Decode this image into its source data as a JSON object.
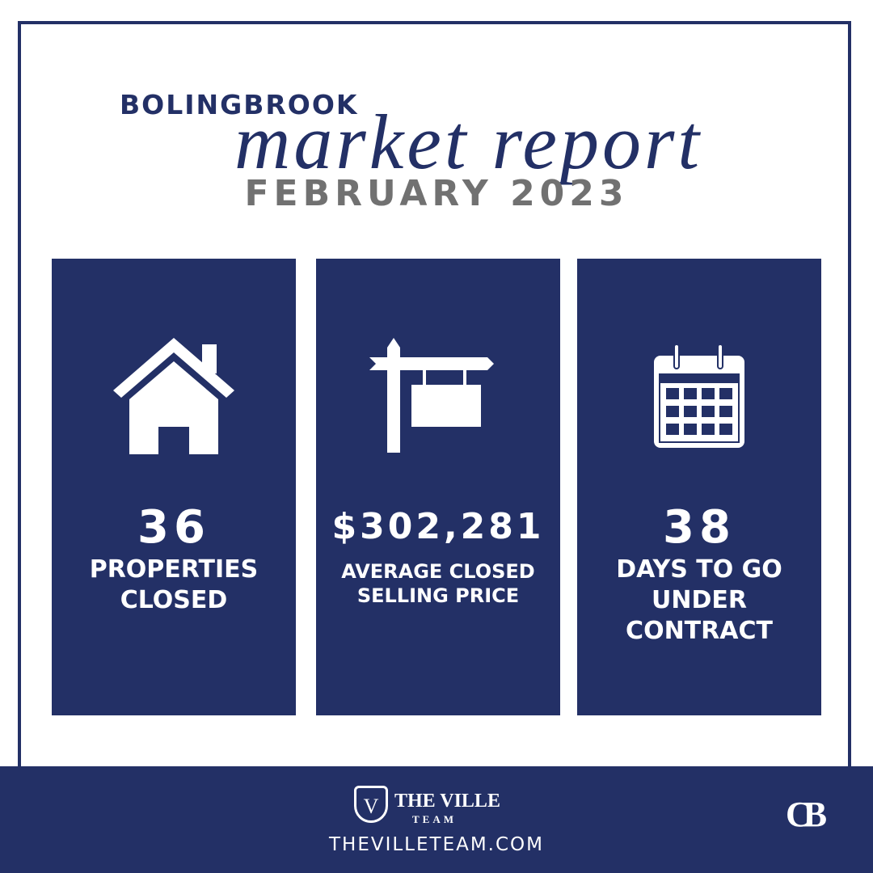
{
  "header": {
    "city": "BOLINGBROOK",
    "script": "market report",
    "period": "FEBRUARY 2023"
  },
  "stats": [
    {
      "value": "36",
      "label": [
        "PROPERTIES",
        "CLOSED"
      ]
    },
    {
      "value": "$302,281",
      "label": [
        "AVERAGE CLOSED",
        "SELLING PRICE"
      ]
    },
    {
      "value": "38",
      "label": [
        "DAYS TO GO",
        "UNDER",
        "CONTRACT"
      ]
    }
  ],
  "footer": {
    "emblem": "V",
    "brand": "THE VILLE",
    "team": "TEAM",
    "url": "THEVILLETEAM.COM",
    "logo": "CB"
  }
}
